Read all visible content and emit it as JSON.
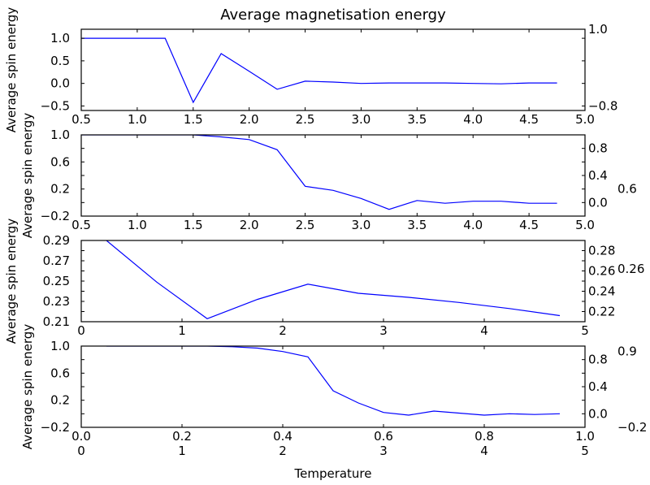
{
  "chart_data": {
    "type": "line",
    "title": "Average magnetisation energy",
    "xlabel": "Temperature",
    "line_color": "#0000ff",
    "grid": false,
    "subplots": [
      {
        "ylabel": "Average spin energy",
        "xlim": [
          0.5,
          5.0
        ],
        "ylim": [
          -0.6,
          1.2
        ],
        "xticks": [
          0.5,
          1.0,
          1.5,
          2.0,
          2.5,
          3.0,
          3.5,
          4.0,
          4.5,
          5.0
        ],
        "xtick_labels": [
          [
            "0.5",
            "1.0",
            "1.5",
            "2.0",
            "2.5",
            "3.0",
            "3.5",
            "4.0",
            "4.5",
            "5.0"
          ]
        ],
        "yticks": [
          -0.5,
          0.0,
          0.5,
          1.0
        ],
        "ytick_labels": [
          [
            "−0.5",
            "0.0",
            "0.5",
            "1.0"
          ]
        ],
        "extra_ylabels": [
          [
            "1.0",
            1.2
          ],
          [
            "−0.8",
            -0.5
          ]
        ],
        "x": [
          0.5,
          0.75,
          1.0,
          1.25,
          1.5,
          1.75,
          2.0,
          2.25,
          2.5,
          2.75,
          3.0,
          3.25,
          3.5,
          3.75,
          4.0,
          4.25,
          4.5,
          4.75
        ],
        "y": [
          1.0,
          1.0,
          1.0,
          1.0,
          -0.42,
          0.66,
          0.27,
          -0.13,
          0.05,
          0.03,
          0.0,
          0.01,
          0.01,
          0.01,
          0.0,
          -0.01,
          0.01,
          0.01
        ]
      },
      {
        "ylabel": "Average spin energy",
        "xlim": [
          0.5,
          5.0
        ],
        "ylim": [
          -0.2,
          1.0
        ],
        "xticks": [
          0.5,
          1.0,
          1.5,
          2.0,
          2.5,
          3.0,
          3.5,
          4.0,
          4.5,
          5.0
        ],
        "xtick_labels": [
          [
            "0.5",
            "1.0",
            "1.5",
            "2.0",
            "2.5",
            "3.0",
            "3.5",
            "4.0",
            "4.5",
            "5.0"
          ]
        ],
        "yticks": [
          -0.2,
          0.0,
          0.2,
          0.4,
          0.6,
          0.8,
          1.0
        ],
        "ytick_labels": [
          [
            "−0.2",
            "0.0",
            "0.2",
            "0.4",
            "0.6",
            "0.8",
            "1.0"
          ]
        ],
        "extra_ylabels": [
          [
            "0.6",
            0.2
          ]
        ],
        "x": [
          0.5,
          0.75,
          1.0,
          1.25,
          1.5,
          1.75,
          2.0,
          2.25,
          2.5,
          2.75,
          3.0,
          3.25,
          3.5,
          3.75,
          4.0,
          4.25,
          4.5,
          4.75
        ],
        "y": [
          1.0,
          1.0,
          1.0,
          1.0,
          1.0,
          0.97,
          0.93,
          0.78,
          0.24,
          0.18,
          0.06,
          -0.1,
          0.03,
          -0.01,
          0.02,
          0.02,
          -0.01,
          -0.01
        ]
      },
      {
        "ylabel": "Average spin energy",
        "xlim": [
          0,
          5
        ],
        "ylim": [
          0.21,
          0.29
        ],
        "xticks": [
          0,
          1,
          2,
          3,
          4,
          5
        ],
        "xtick_labels": [
          [
            "0",
            "1",
            "2",
            "3",
            "4",
            "5"
          ]
        ],
        "yticks": [
          0.21,
          0.22,
          0.23,
          0.24,
          0.25,
          0.26,
          0.27,
          0.28,
          0.29
        ],
        "ytick_labels": [
          [
            "0.21",
            "0.22",
            "0.23",
            "0.24",
            "0.25",
            "0.26",
            "0.27",
            "0.28",
            "0.29"
          ]
        ],
        "extra_ylabels": [
          [
            "0.26",
            0.262
          ]
        ],
        "x": [
          0.25,
          0.75,
          1.25,
          1.75,
          2.25,
          2.75,
          3.25,
          3.75,
          4.25,
          4.75
        ],
        "y": [
          0.29,
          0.249,
          0.213,
          0.232,
          0.247,
          0.238,
          0.234,
          0.229,
          0.223,
          0.216
        ]
      },
      {
        "ylabel": "Average spin energy",
        "xlim": [
          0,
          5
        ],
        "ylim": [
          -0.2,
          1.0
        ],
        "xticks": [
          0,
          1,
          2,
          3,
          4,
          5
        ],
        "xtick_labels": [
          [
            "0.0",
            "0.2",
            "0.4",
            "0.6",
            "0.8",
            "1.0"
          ],
          [
            "0",
            "1",
            "2",
            "3",
            "4",
            "5"
          ]
        ],
        "yticks": [
          -0.2,
          0.0,
          0.2,
          0.4,
          0.6,
          0.8,
          1.0
        ],
        "ytick_labels": [
          [
            "−0.2",
            "0.0",
            "0.2",
            "0.4",
            "0.6",
            "0.8",
            "1.0"
          ]
        ],
        "extra_ylabels": [
          [
            "0.9",
            0.92
          ],
          [
            "−0.2",
            -0.2
          ]
        ],
        "x": [
          0.25,
          0.5,
          0.75,
          1.0,
          1.25,
          1.5,
          1.75,
          2.0,
          2.25,
          2.5,
          2.75,
          3.0,
          3.25,
          3.5,
          3.75,
          4.0,
          4.25,
          4.5,
          4.75
        ],
        "y": [
          1.0,
          1.0,
          1.0,
          1.0,
          1.0,
          0.99,
          0.97,
          0.92,
          0.84,
          0.34,
          0.16,
          0.02,
          -0.02,
          0.04,
          0.01,
          -0.02,
          0.0,
          -0.01,
          0.0
        ]
      }
    ]
  }
}
